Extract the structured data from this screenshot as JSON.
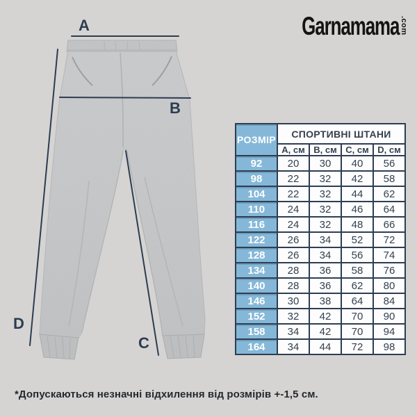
{
  "page": {
    "footnote": "*Допускаються незначні відхилення від розмірів +-1,5 см."
  },
  "brand": {
    "name": "Garnamama",
    "tld": ".com"
  },
  "diagram": {
    "labels": {
      "a": "A",
      "b": "B",
      "c": "C",
      "d": "D"
    }
  },
  "table": {
    "size_header": "РОЗМІР",
    "group_header": "СПОРТИВНІ ШТАНИ",
    "columns": [
      "А, см",
      "В, см",
      "С, см",
      "D, см"
    ],
    "rows": [
      {
        "size": "92",
        "values": [
          20,
          30,
          40,
          56
        ]
      },
      {
        "size": "98",
        "values": [
          22,
          32,
          42,
          58
        ]
      },
      {
        "size": "104",
        "values": [
          22,
          32,
          44,
          62
        ]
      },
      {
        "size": "110",
        "values": [
          24,
          32,
          46,
          64
        ]
      },
      {
        "size": "116",
        "values": [
          24,
          32,
          48,
          66
        ]
      },
      {
        "size": "122",
        "values": [
          26,
          34,
          52,
          72
        ]
      },
      {
        "size": "128",
        "values": [
          26,
          34,
          56,
          74
        ]
      },
      {
        "size": "134",
        "values": [
          28,
          36,
          58,
          76
        ]
      },
      {
        "size": "140",
        "values": [
          28,
          36,
          62,
          80
        ]
      },
      {
        "size": "146",
        "values": [
          30,
          38,
          64,
          84
        ]
      },
      {
        "size": "152",
        "values": [
          32,
          42,
          70,
          90
        ]
      },
      {
        "size": "158",
        "values": [
          34,
          42,
          70,
          94
        ]
      },
      {
        "size": "164",
        "values": [
          34,
          44,
          72,
          98
        ]
      }
    ]
  },
  "colors": {
    "page-bg": "#d5d4d2",
    "table-border": "#2e3d52",
    "table-blue": "#85b8d8",
    "cell-bg": "#fdfdfd",
    "text-navy": "#35404f",
    "label-navy": "#2c3c52",
    "pants-gray": "#c6c7c9",
    "logo-black": "#141414",
    "footnote-dark": "#24292f"
  }
}
